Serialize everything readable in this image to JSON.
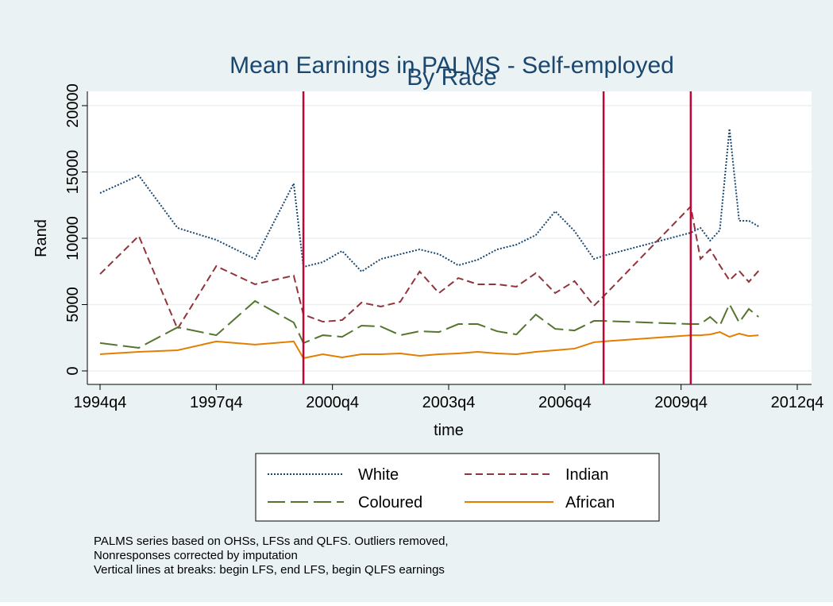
{
  "chart_data": {
    "type": "line",
    "title": "Mean Earnings in PALMS - Self-employed",
    "subtitle": "By Race",
    "xlabel": "time",
    "ylabel": "Rand",
    "x": [
      139,
      143,
      147,
      151,
      155,
      159,
      160,
      162,
      164,
      166,
      168,
      170,
      172,
      174,
      176,
      178,
      180,
      182,
      184,
      186,
      188,
      190,
      191,
      200,
      201,
      202,
      203,
      204,
      205,
      206,
      207
    ],
    "xlim": [
      139,
      211
    ],
    "xticks": [
      {
        "value": 139,
        "label": "1994q4"
      },
      {
        "value": 151,
        "label": "1997q4"
      },
      {
        "value": 163,
        "label": "2000q4"
      },
      {
        "value": 175,
        "label": "2003q4"
      },
      {
        "value": 187,
        "label": "2006q4"
      },
      {
        "value": 199,
        "label": "2009q4"
      },
      {
        "value": 211,
        "label": "2012q4"
      }
    ],
    "ylim": [
      0,
      20000
    ],
    "yticks": [
      0,
      5000,
      10000,
      15000,
      20000
    ],
    "grid": true,
    "xlines": [
      160,
      191,
      200
    ],
    "xline_color": "#c10534",
    "series": [
      {
        "name": "White",
        "color": "#1a476f",
        "dash": "2,2",
        "values": [
          13410,
          14730,
          10780,
          9880,
          8440,
          14130,
          7840,
          8200,
          9040,
          7490,
          8440,
          8800,
          9160,
          8800,
          7960,
          8380,
          9160,
          9520,
          10240,
          12040,
          10540,
          8440,
          8680,
          10420,
          10780,
          9820,
          10600,
          18260,
          11320,
          11320,
          10900
        ]
      },
      {
        "name": "Indian",
        "color": "#90353b",
        "dash": "9,5",
        "values": [
          7300,
          10180,
          3170,
          7900,
          6530,
          7190,
          4250,
          3710,
          3830,
          5150,
          4850,
          5210,
          7490,
          5870,
          7000,
          6530,
          6530,
          6350,
          7370,
          5870,
          6770,
          4910,
          5630,
          12400,
          8440,
          9160,
          7960,
          6830,
          7540,
          6710,
          7540
        ]
      },
      {
        "name": "Coloured",
        "color": "#55752f",
        "dash": "22,7",
        "values": [
          2100,
          1740,
          3290,
          2690,
          5270,
          3650,
          2100,
          2690,
          2570,
          3410,
          3350,
          2690,
          2990,
          2930,
          3530,
          3530,
          2990,
          2750,
          4250,
          3170,
          3050,
          3770,
          3770,
          3530,
          3530,
          4070,
          3410,
          5030,
          3650,
          4670,
          4070
        ]
      },
      {
        "name": "African",
        "color": "#e37e00",
        "dash": "",
        "values": [
          1260,
          1440,
          1560,
          2220,
          1980,
          2220,
          960,
          1260,
          1020,
          1260,
          1260,
          1320,
          1140,
          1260,
          1320,
          1440,
          1320,
          1260,
          1440,
          1560,
          1680,
          2160,
          2220,
          2690,
          2690,
          2750,
          2930,
          2570,
          2810,
          2630,
          2690
        ]
      }
    ],
    "notes": [
      "PALMS series based on OHSs, LFSs and QLFS. Outliers removed,",
      "Nonresponses corrected by imputation",
      "Vertical lines at breaks: begin LFS, end LFS, begin QLFS earnings"
    ]
  }
}
